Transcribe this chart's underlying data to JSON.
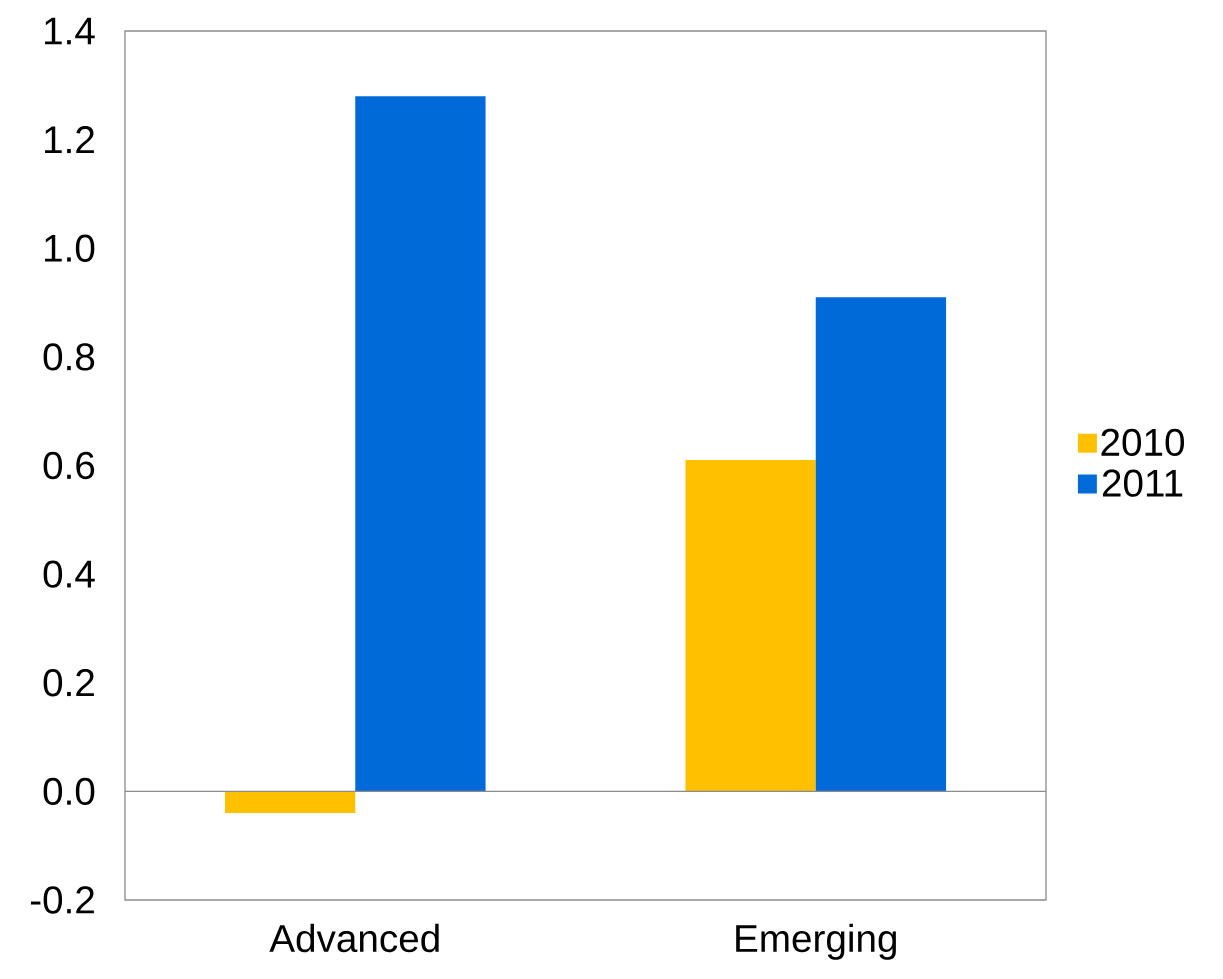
{
  "chart_data": {
    "type": "bar",
    "categories": [
      "Advanced",
      "Emerging"
    ],
    "series": [
      {
        "name": "2010",
        "color": "#ffc000",
        "values": [
          -0.04,
          0.61
        ]
      },
      {
        "name": "2011",
        "color": "#006ad8",
        "values": [
          1.28,
          0.91
        ]
      }
    ],
    "ylim": [
      -0.2,
      1.4
    ],
    "yticks": [
      {
        "value": -0.2,
        "label": "-0.2"
      },
      {
        "value": 0,
        "label": "0.0"
      },
      {
        "value": 0.2,
        "label": "0.2"
      },
      {
        "value": 0.4,
        "label": "0.4"
      },
      {
        "value": 0.6,
        "label": "0.6"
      },
      {
        "value": 0.8,
        "label": "0.8"
      },
      {
        "value": 1.0,
        "label": "1.0"
      },
      {
        "value": 1.2,
        "label": "1.2"
      },
      {
        "value": 1.4,
        "label": "1.4"
      }
    ],
    "ref_lines": [
      {
        "axis": "y",
        "value": 0,
        "color": "#8c8c8c"
      }
    ],
    "legend": "right"
  }
}
